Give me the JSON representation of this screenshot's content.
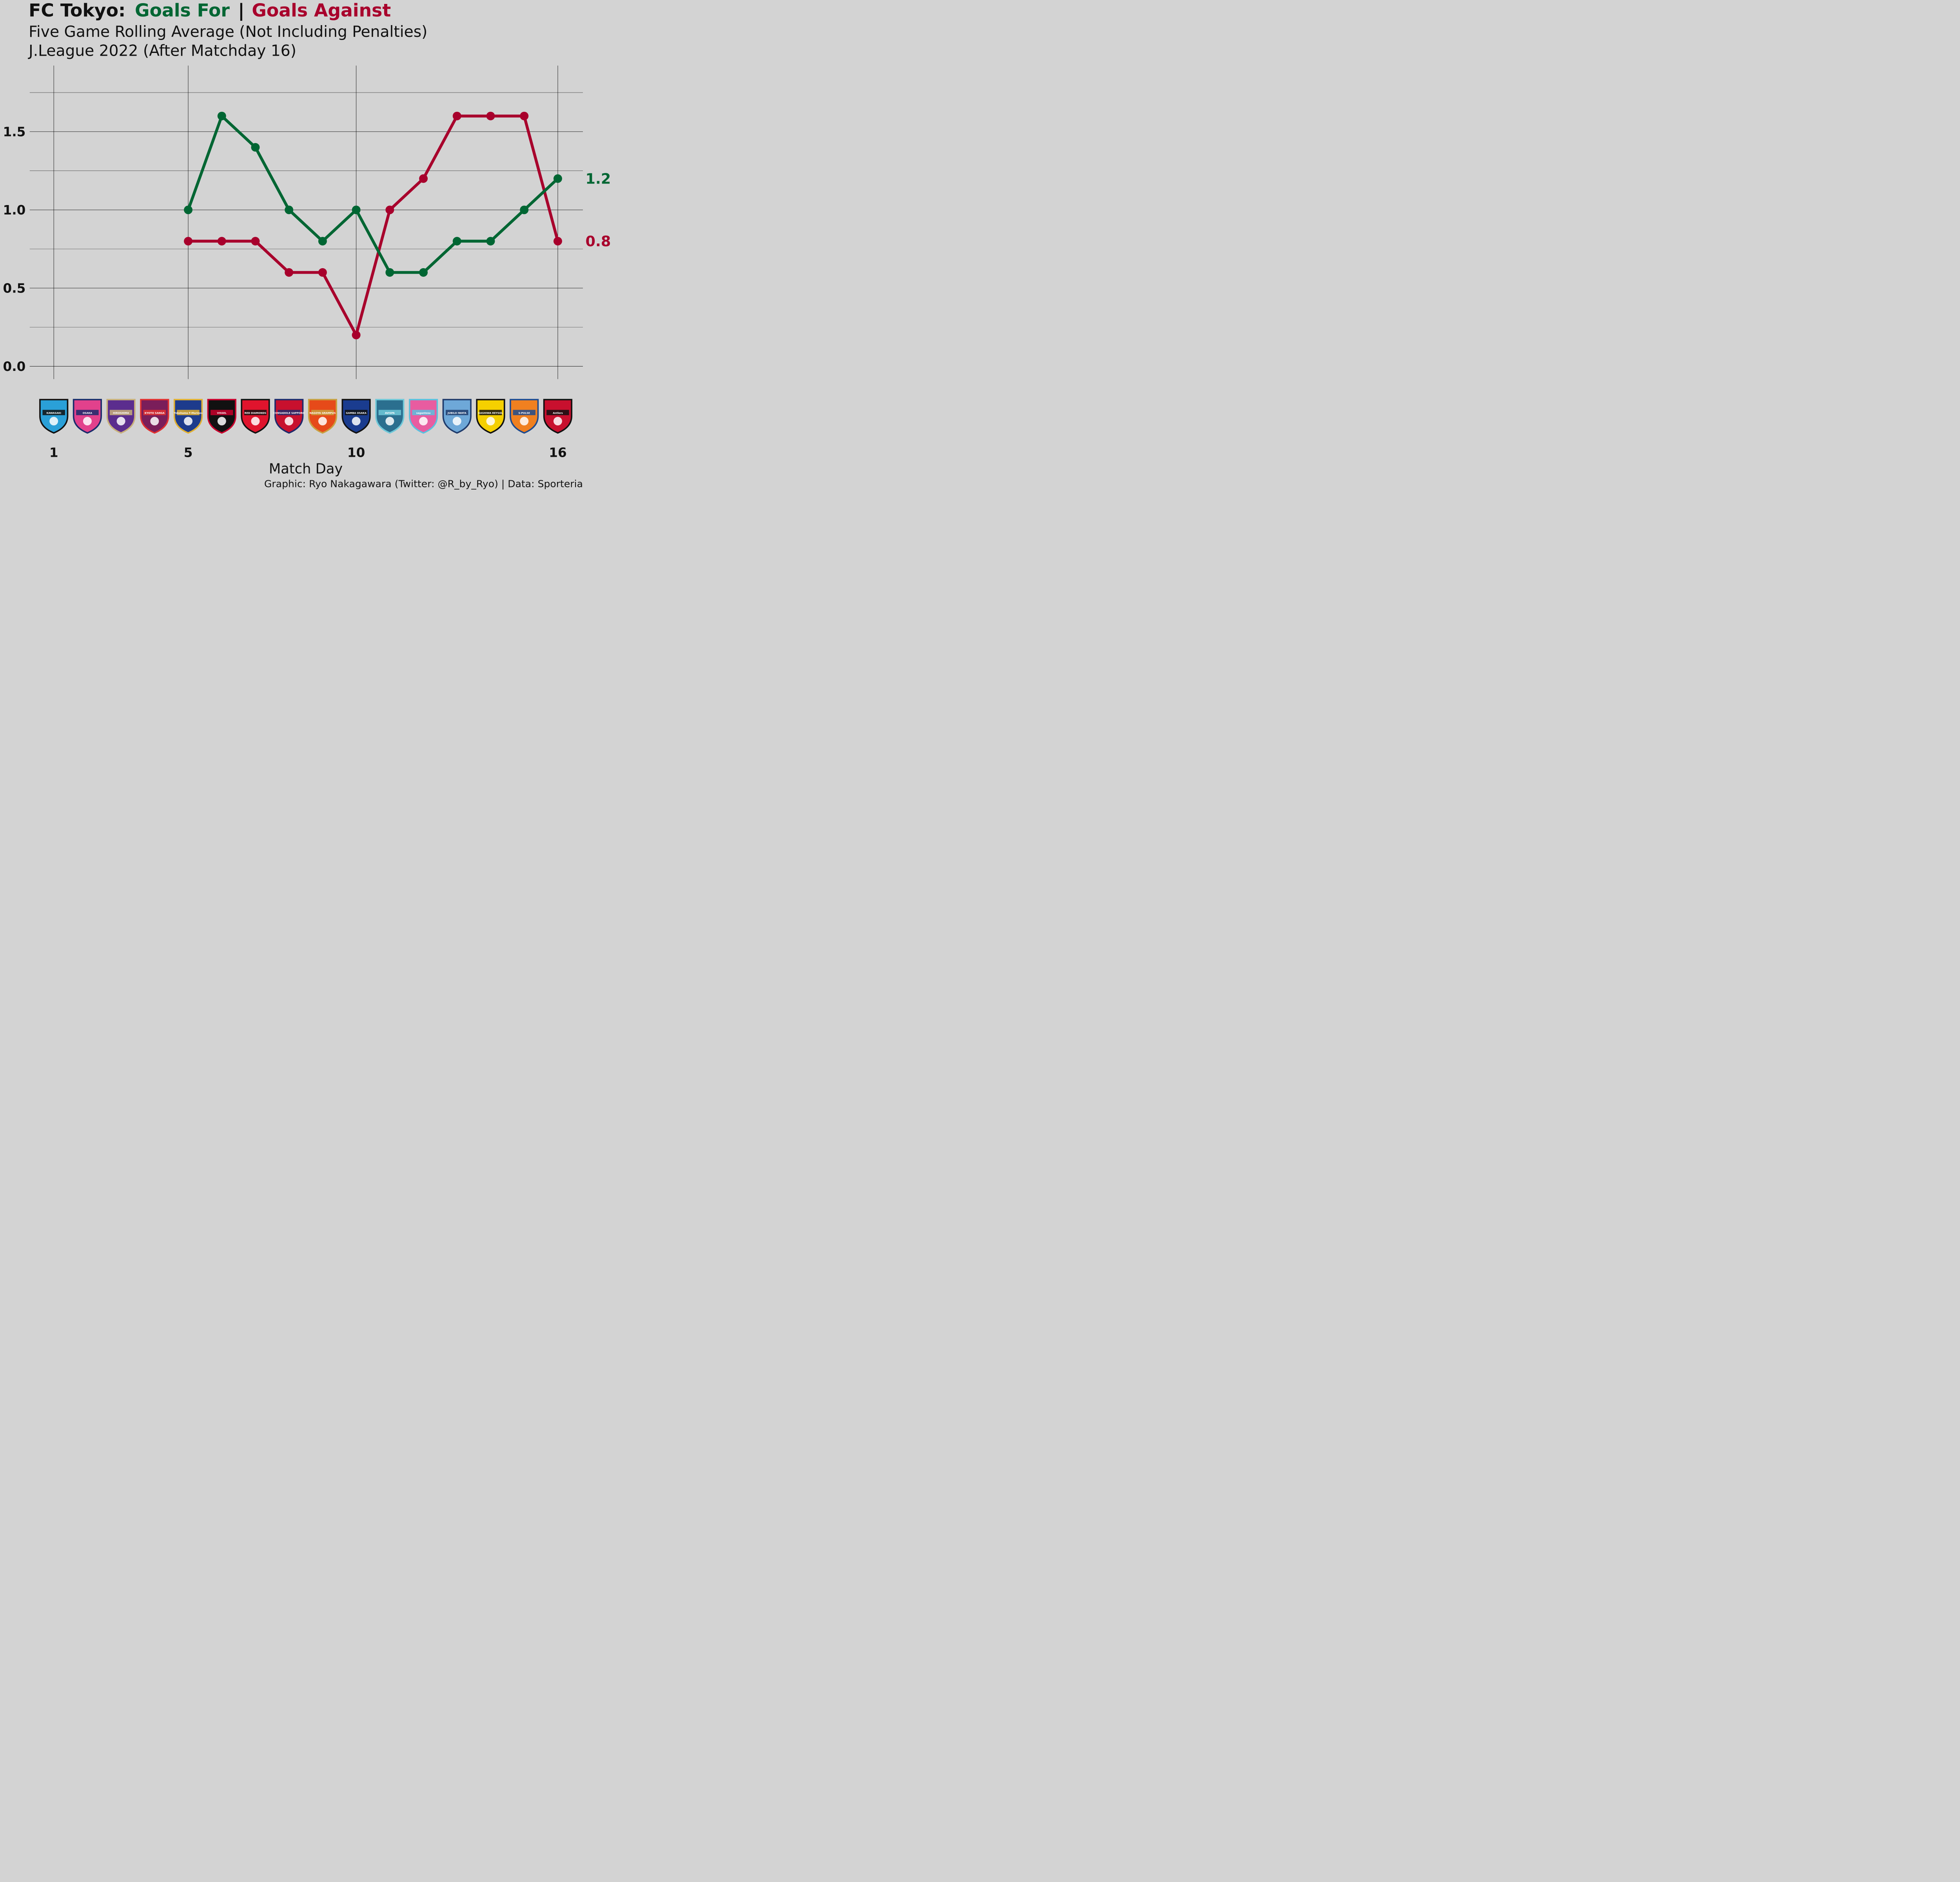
{
  "title": {
    "prefix": "FC Tokyo:",
    "goals_for": "Goals For",
    "separator": "|",
    "goals_against": "Goals Against"
  },
  "subtitle_1": "Five Game Rolling Average (Not Including Penalties)",
  "subtitle_2": "J.League 2022 (After Matchday 16)",
  "caption": "Graphic: Ryo Nakagawara (Twitter: @R_by_Ryo) | Data: Sporteria",
  "colors": {
    "background": "#d3d3d3",
    "goals_for": "#006633",
    "goals_against": "#a8002c",
    "text": "#111111"
  },
  "chart_data": {
    "type": "line",
    "xlabel": "Match Day",
    "ylabel": "",
    "xlim": [
      1,
      16
    ],
    "ylim": [
      -0.05,
      1.85
    ],
    "x_ticks": [
      1,
      5,
      10,
      16
    ],
    "y_ticks": [
      0.0,
      0.5,
      1.0,
      1.5
    ],
    "y_tick_labels": [
      "0.0",
      "0.5",
      "1.0",
      "1.5"
    ],
    "x_tick_labels": [
      "1",
      "5",
      "10",
      "16"
    ],
    "grid": true,
    "legend": "in title",
    "series": [
      {
        "name": "Goals For",
        "color": "#006633",
        "x": [
          5,
          6,
          7,
          8,
          9,
          10,
          11,
          12,
          13,
          14,
          15,
          16
        ],
        "values": [
          1.0,
          1.6,
          1.4,
          1.0,
          0.8,
          1.0,
          0.6,
          0.6,
          0.8,
          0.8,
          1.0,
          1.2
        ],
        "end_label": "1.2"
      },
      {
        "name": "Goals Against",
        "color": "#a8002c",
        "x": [
          5,
          6,
          7,
          8,
          9,
          10,
          11,
          12,
          13,
          14,
          15,
          16
        ],
        "values": [
          0.8,
          0.8,
          0.8,
          0.6,
          0.6,
          0.2,
          1.0,
          1.2,
          1.6,
          1.6,
          1.6,
          0.8
        ],
        "end_label": "0.8"
      }
    ],
    "opponents": [
      {
        "match": 1,
        "name": "KAWASAKI",
        "primary": "#2aa0d8",
        "secondary": "#111111"
      },
      {
        "match": 2,
        "name": "OSAKA",
        "primary": "#e2418c",
        "secondary": "#1a2b6b"
      },
      {
        "match": 3,
        "name": "HIROSHIMA",
        "primary": "#5b2d8e",
        "secondary": "#c8b07a"
      },
      {
        "match": 4,
        "name": "KYOTO SANGA",
        "primary": "#7a1e5a",
        "secondary": "#e03030"
      },
      {
        "match": 5,
        "name": "Yokohama F-Marinos",
        "primary": "#1d3b8c",
        "secondary": "#e0b030"
      },
      {
        "match": 6,
        "name": "VISSEL",
        "primary": "#111111",
        "secondary": "#c8002c"
      },
      {
        "match": 7,
        "name": "RED DIAMONDS",
        "primary": "#e0142d",
        "secondary": "#111111"
      },
      {
        "match": 8,
        "name": "CONSADOLE SAPPORO",
        "primary": "#c8102e",
        "secondary": "#1f2a6b"
      },
      {
        "match": 9,
        "name": "NAGOYA GRAMPUS",
        "primary": "#e64a19",
        "secondary": "#c8a040"
      },
      {
        "match": 10,
        "name": "GAMBA OSAKA",
        "primary": "#1a3c8f",
        "secondary": "#111111"
      },
      {
        "match": 11,
        "name": "AVISPA",
        "primary": "#2b6f8f",
        "secondary": "#6fc8d8"
      },
      {
        "match": 12,
        "name": "sagantosu",
        "primary": "#e85ca0",
        "secondary": "#5bc0de"
      },
      {
        "match": 13,
        "name": "JUBILO IWATA",
        "primary": "#6ea8d8",
        "secondary": "#1f3b6b"
      },
      {
        "match": 14,
        "name": "KASHIWA REYSOL",
        "primary": "#f5d000",
        "secondary": "#111111"
      },
      {
        "match": 15,
        "name": "S-PULSE",
        "primary": "#f08020",
        "secondary": "#1f4b8f"
      },
      {
        "match": 16,
        "name": "Antlers",
        "primary": "#c8102e",
        "secondary": "#111111"
      }
    ]
  }
}
